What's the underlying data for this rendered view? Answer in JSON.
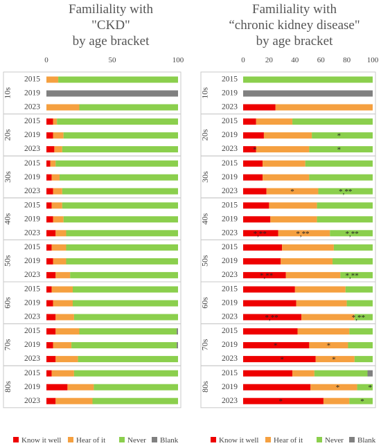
{
  "colors": {
    "know": "#ee0000",
    "hear": "#f5a040",
    "never": "#8bcf4d",
    "blank": "#808080",
    "border": "#c9c9c9",
    "text": "#444444"
  },
  "chart_data": [
    {
      "type": "bar",
      "title": "Familiality with\n\"CKD\"\nby age bracket",
      "xlim": [
        0,
        100
      ],
      "xticks": [
        "0",
        "50",
        "100"
      ],
      "groups": [
        "10s",
        "20s",
        "30s",
        "40s",
        "50s",
        "60s",
        "70s",
        "80s"
      ],
      "years": [
        "2015",
        "2019",
        "2023"
      ],
      "series": [
        {
          "name": "Know it well",
          "values": [
            [
              0,
              0,
              0
            ],
            [
              5,
              5,
              6
            ],
            [
              3,
              4,
              5
            ],
            [
              4,
              5,
              7
            ],
            [
              4,
              5,
              7
            ],
            [
              4,
              5,
              7
            ],
            [
              7,
              5,
              7
            ],
            [
              4,
              16,
              7
            ]
          ]
        },
        {
          "name": "Hear of it",
          "values": [
            [
              9,
              0,
              25
            ],
            [
              3,
              8,
              6
            ],
            [
              4,
              6,
              7
            ],
            [
              8,
              8,
              8
            ],
            [
              11,
              10,
              11
            ],
            [
              16,
              15,
              14
            ],
            [
              18,
              14,
              17
            ],
            [
              17,
              20,
              28
            ]
          ]
        },
        {
          "name": "Never",
          "values": [
            [
              91,
              0,
              75
            ],
            [
              92,
              87,
              88
            ],
            [
              93,
              90,
              88
            ],
            [
              88,
              87,
              85
            ],
            [
              85,
              85,
              82
            ],
            [
              80,
              80,
              79
            ],
            [
              74,
              80,
              76
            ],
            [
              79,
              64,
              65
            ]
          ]
        },
        {
          "name": "Blank",
          "values": [
            [
              0,
              100,
              0
            ],
            [
              0,
              0,
              0
            ],
            [
              0,
              0,
              0
            ],
            [
              0,
              0,
              0
            ],
            [
              0,
              0,
              0
            ],
            [
              0,
              0,
              0
            ],
            [
              1,
              1,
              0
            ],
            [
              0,
              0,
              0
            ]
          ]
        }
      ],
      "annotations": []
    },
    {
      "type": "bar",
      "title": "Familiality with\n“chronic kidney disease\"\nby age bracket",
      "xlim": [
        0,
        100
      ],
      "xticks": [
        "0",
        "20",
        "40",
        "60",
        "80",
        "100"
      ],
      "groups": [
        "10s",
        "20s",
        "30s",
        "40s",
        "50s",
        "60s",
        "70s",
        "80s"
      ],
      "years": [
        "2015",
        "2019",
        "2023"
      ],
      "series": [
        {
          "name": "Know it well",
          "values": [
            [
              0,
              0,
              25
            ],
            [
              10,
              16,
              10
            ],
            [
              15,
              15,
              18
            ],
            [
              20,
              21,
              27
            ],
            [
              30,
              29,
              33
            ],
            [
              40,
              41,
              45
            ],
            [
              42,
              51,
              56
            ],
            [
              38,
              52,
              62
            ]
          ]
        },
        {
          "name": "Hear of it",
          "values": [
            [
              0,
              0,
              75
            ],
            [
              28,
              37,
              41
            ],
            [
              33,
              36,
              40
            ],
            [
              37,
              36,
              40
            ],
            [
              40,
              40,
              42
            ],
            [
              39,
              39,
              41
            ],
            [
              40,
              30,
              30
            ],
            [
              17,
              36,
              20
            ]
          ]
        },
        {
          "name": "Never",
          "values": [
            [
              100,
              0,
              0
            ],
            [
              62,
              47,
              49
            ],
            [
              52,
              49,
              42
            ],
            [
              43,
              43,
              33
            ],
            [
              30,
              31,
              25
            ],
            [
              21,
              20,
              14
            ],
            [
              18,
              19,
              14
            ],
            [
              41,
              12,
              18
            ]
          ]
        },
        {
          "name": "Blank",
          "values": [
            [
              0,
              100,
              0
            ],
            [
              0,
              0,
              0
            ],
            [
              0,
              0,
              0
            ],
            [
              0,
              0,
              0
            ],
            [
              0,
              0,
              0
            ],
            [
              0,
              0,
              0
            ],
            [
              0,
              0,
              0
            ],
            [
              4,
              0,
              0
            ]
          ]
        }
      ],
      "annotations": [
        {
          "group": "20s",
          "year": "2019",
          "x": 74,
          "text": "*"
        },
        {
          "group": "20s",
          "year": "2023",
          "x": 9,
          "text": "*"
        },
        {
          "group": "20s",
          "year": "2023",
          "x": 74,
          "text": "*"
        },
        {
          "group": "30s",
          "year": "2023",
          "x": 38,
          "text": "*"
        },
        {
          "group": "30s",
          "year": "2023",
          "x": 79,
          "text": "*,**"
        },
        {
          "group": "40s",
          "year": "2023",
          "x": 13,
          "text": "*,**"
        },
        {
          "group": "40s",
          "year": "2023",
          "x": 46,
          "text": "*,**"
        },
        {
          "group": "40s",
          "year": "2023",
          "x": 84,
          "text": "*,**"
        },
        {
          "group": "50s",
          "year": "2023",
          "x": 18,
          "text": "*,**"
        },
        {
          "group": "50s",
          "year": "2023",
          "x": 84,
          "text": "*,**"
        },
        {
          "group": "60s",
          "year": "2023",
          "x": 22,
          "text": "*,**"
        },
        {
          "group": "60s",
          "year": "2023",
          "x": 89,
          "text": "*,**"
        },
        {
          "group": "70s",
          "year": "2019",
          "x": 25,
          "text": "*"
        },
        {
          "group": "70s",
          "year": "2019",
          "x": 66,
          "text": "*"
        },
        {
          "group": "70s",
          "year": "2023",
          "x": 30,
          "text": "*"
        },
        {
          "group": "70s",
          "year": "2023",
          "x": 70,
          "text": "*"
        },
        {
          "group": "80s",
          "year": "2019",
          "x": 73,
          "text": "*"
        },
        {
          "group": "80s",
          "year": "2019",
          "x": 98,
          "text": "*"
        },
        {
          "group": "80s",
          "year": "2023",
          "x": 29,
          "text": "*"
        },
        {
          "group": "80s",
          "year": "2023",
          "x": 92,
          "text": "*"
        }
      ]
    }
  ]
}
